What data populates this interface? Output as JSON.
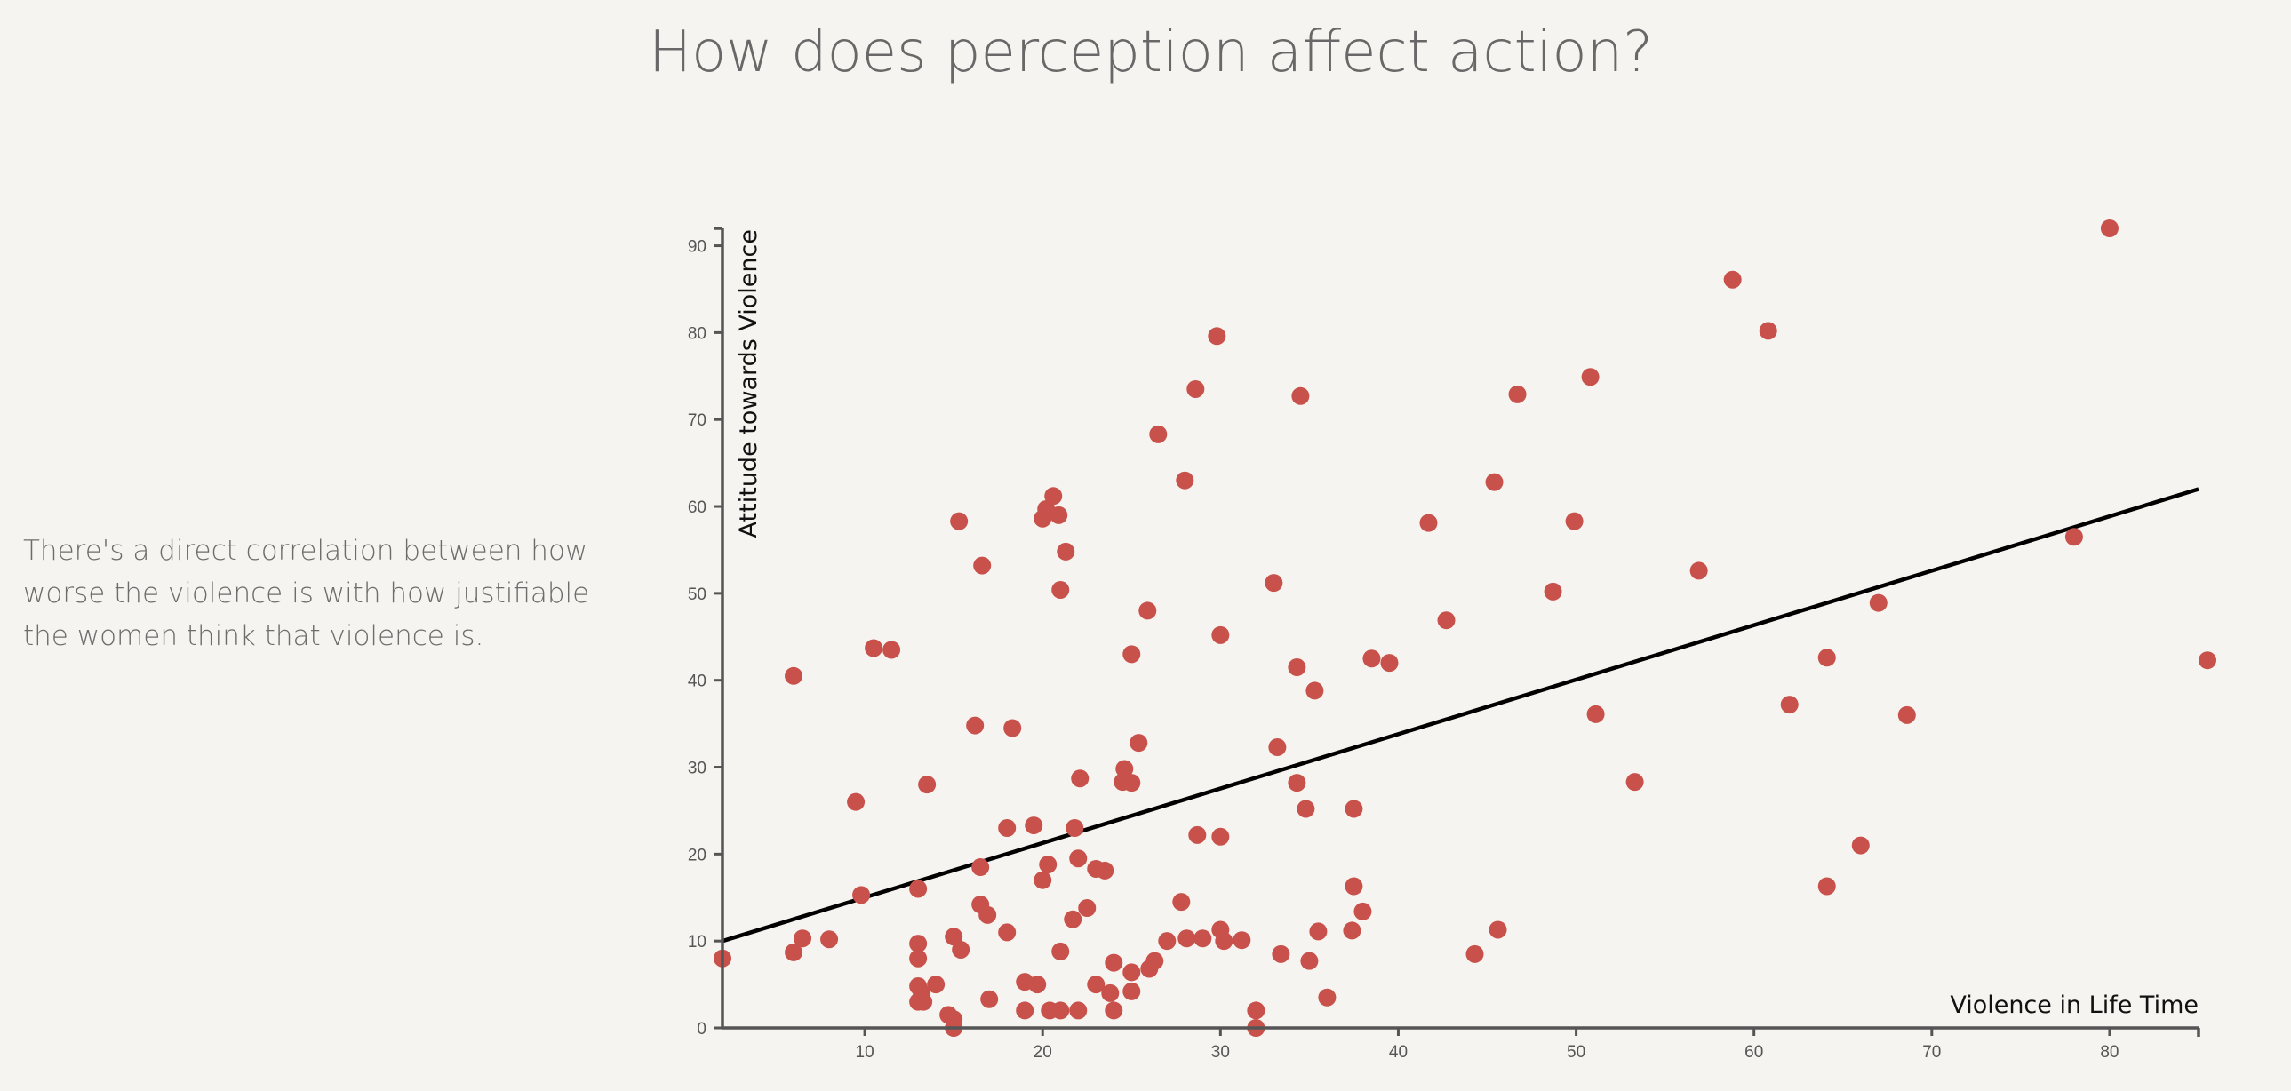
{
  "page": {
    "title": "How does perception affect action?",
    "description": "There's a direct correlation between how worse the violence is with how justifiable the women think that violence is."
  },
  "colors": {
    "point": "#c9514b",
    "trend": "#000000",
    "axis": "#555555",
    "background": "#f6f4f0"
  },
  "chart_data": {
    "type": "scatter",
    "xlabel": "Violence in Life Time",
    "ylabel": "Attitude towards Violence",
    "xlim": [
      2,
      85
    ],
    "ylim": [
      0,
      92
    ],
    "xticks": [
      10,
      20,
      30,
      40,
      50,
      60,
      70,
      80
    ],
    "yticks": [
      0,
      10,
      20,
      30,
      40,
      50,
      60,
      70,
      80,
      90
    ],
    "grid": false,
    "trendline": {
      "x": [
        2,
        85
      ],
      "y": [
        10,
        62
      ]
    },
    "points": [
      [
        2,
        8
      ],
      [
        6,
        8.7
      ],
      [
        6.5,
        10.3
      ],
      [
        8,
        10.2
      ],
      [
        6,
        40.5
      ],
      [
        9.5,
        26
      ],
      [
        9.8,
        15.3
      ],
      [
        10.5,
        43.7
      ],
      [
        11.5,
        43.5
      ],
      [
        13,
        16
      ],
      [
        13,
        9.7
      ],
      [
        13,
        8
      ],
      [
        13,
        4.8
      ],
      [
        13.2,
        4
      ],
      [
        13,
        3
      ],
      [
        13.3,
        3
      ],
      [
        13.5,
        28
      ],
      [
        14,
        5
      ],
      [
        14.7,
        1.5
      ],
      [
        15,
        1
      ],
      [
        15,
        0
      ],
      [
        15,
        10.5
      ],
      [
        15.3,
        58.3
      ],
      [
        15.4,
        9
      ],
      [
        16.2,
        34.8
      ],
      [
        16.6,
        53.2
      ],
      [
        16.5,
        18.5
      ],
      [
        16.5,
        14.2
      ],
      [
        16.9,
        13
      ],
      [
        17,
        3.3
      ],
      [
        18,
        23
      ],
      [
        18,
        11
      ],
      [
        18.3,
        34.5
      ],
      [
        19,
        5.3
      ],
      [
        19,
        2
      ],
      [
        19.5,
        23.3
      ],
      [
        19.7,
        5
      ],
      [
        20,
        17
      ],
      [
        20.3,
        18.8
      ],
      [
        20,
        58.6
      ],
      [
        20.2,
        59.7
      ],
      [
        20.6,
        61.2
      ],
      [
        20.9,
        59
      ],
      [
        21,
        50.4
      ],
      [
        21.3,
        54.8
      ],
      [
        21,
        8.8
      ],
      [
        20.4,
        2
      ],
      [
        21,
        2
      ],
      [
        21.7,
        12.5
      ],
      [
        21.8,
        23
      ],
      [
        22,
        19.5
      ],
      [
        22.1,
        28.7
      ],
      [
        22,
        2
      ],
      [
        22.5,
        13.8
      ],
      [
        23,
        18.3
      ],
      [
        23,
        5
      ],
      [
        23.5,
        18.1
      ],
      [
        23.8,
        4
      ],
      [
        24,
        7.5
      ],
      [
        24,
        2
      ],
      [
        24.5,
        28.3
      ],
      [
        24.6,
        29.8
      ],
      [
        25,
        28.2
      ],
      [
        25,
        43
      ],
      [
        25,
        6.4
      ],
      [
        25,
        4.2
      ],
      [
        25.4,
        32.8
      ],
      [
        25.9,
        48
      ],
      [
        26,
        6.8
      ],
      [
        26.3,
        7.7
      ],
      [
        26.5,
        68.3
      ],
      [
        27,
        10
      ],
      [
        27.8,
        14.5
      ],
      [
        28,
        63
      ],
      [
        28.1,
        10.3
      ],
      [
        28.6,
        73.5
      ],
      [
        28.7,
        22.2
      ],
      [
        29,
        10.3
      ],
      [
        29.8,
        79.6
      ],
      [
        30,
        45.2
      ],
      [
        30,
        22
      ],
      [
        30,
        11.3
      ],
      [
        30.2,
        10
      ],
      [
        31.2,
        10.1
      ],
      [
        32,
        2
      ],
      [
        32,
        0
      ],
      [
        33,
        51.2
      ],
      [
        33.2,
        32.3
      ],
      [
        33.4,
        8.5
      ],
      [
        34.3,
        41.5
      ],
      [
        34.3,
        28.2
      ],
      [
        34.5,
        72.7
      ],
      [
        34.8,
        25.2
      ],
      [
        35,
        7.7
      ],
      [
        35.3,
        38.8
      ],
      [
        35.5,
        11.1
      ],
      [
        36,
        3.5
      ],
      [
        37.5,
        25.2
      ],
      [
        37.5,
        16.3
      ],
      [
        37.4,
        11.2
      ],
      [
        38,
        13.4
      ],
      [
        38.5,
        42.5
      ],
      [
        39.5,
        42
      ],
      [
        41.7,
        58.1
      ],
      [
        42.7,
        46.9
      ],
      [
        44.3,
        8.5
      ],
      [
        45.4,
        62.8
      ],
      [
        45.6,
        11.3
      ],
      [
        46.7,
        72.9
      ],
      [
        48.7,
        50.2
      ],
      [
        49.9,
        58.3
      ],
      [
        50.8,
        74.9
      ],
      [
        51.1,
        36.1
      ],
      [
        53.3,
        28.3
      ],
      [
        56.9,
        52.6
      ],
      [
        58.8,
        86.1
      ],
      [
        60.8,
        80.2
      ],
      [
        62,
        37.2
      ],
      [
        64.1,
        42.6
      ],
      [
        64.1,
        16.3
      ],
      [
        66,
        21
      ],
      [
        67,
        48.9
      ],
      [
        68.6,
        36
      ],
      [
        78,
        56.5
      ],
      [
        80,
        92
      ],
      [
        85.5,
        42.3
      ]
    ]
  }
}
